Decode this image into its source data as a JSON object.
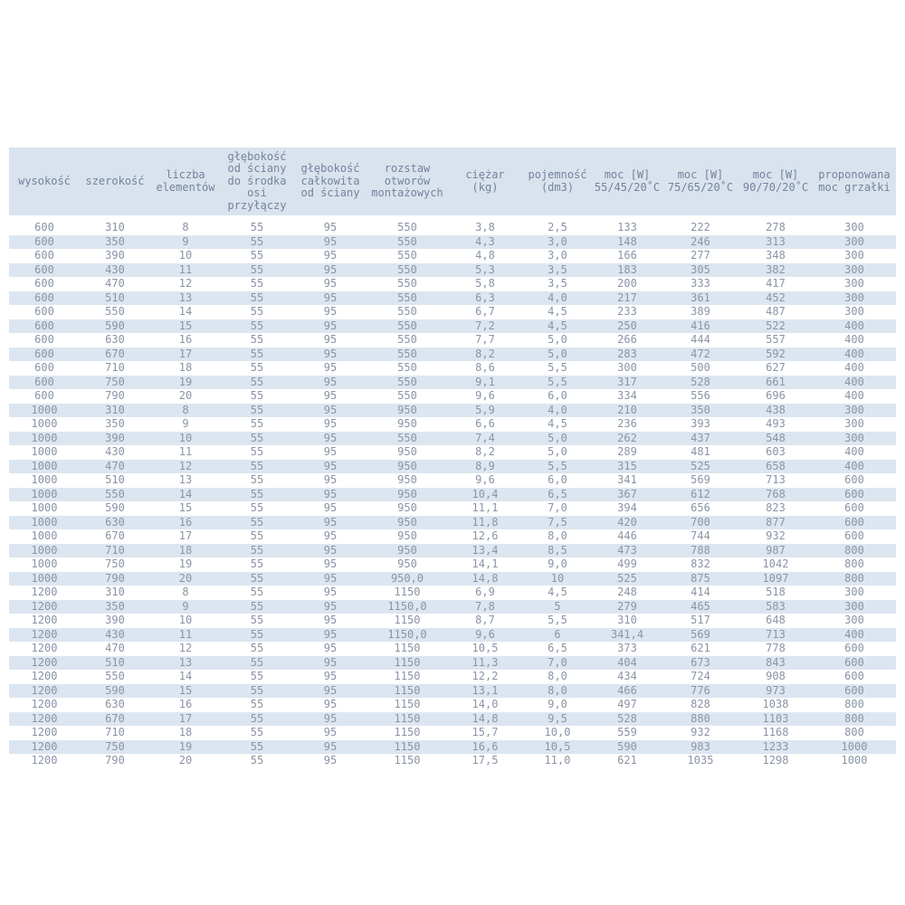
{
  "colors": {
    "header_bg": "#d9e3ee",
    "stripe_bg": "#dce6f0",
    "row_bg": "#ffffff",
    "header_text": "#75829c",
    "cell_text": "#8a94a6"
  },
  "table": {
    "columns": [
      "wysokość",
      "szerokość",
      "liczba\nelementów",
      "głębokość\nod ściany\ndo środka\nosi\nprzyłączy",
      "głębokość\ncałkowita\nod ściany",
      "rozstaw\notworów\nmontażowych",
      "ciężar\n(kg)",
      "pojemność\n(dm3)",
      "moc [W]\n55/45/20˚C",
      "moc [W]\n75/65/20˚C",
      "moc [W]\n90/70/20˚C",
      "proponowana\nmoc grzałki"
    ],
    "rows": [
      [
        "600",
        "310",
        "8",
        "55",
        "95",
        "550",
        "3,8",
        "2,5",
        "133",
        "222",
        "278",
        "300"
      ],
      [
        "600",
        "350",
        "9",
        "55",
        "95",
        "550",
        "4,3",
        "3,0",
        "148",
        "246",
        "313",
        "300"
      ],
      [
        "600",
        "390",
        "10",
        "55",
        "95",
        "550",
        "4,8",
        "3,0",
        "166",
        "277",
        "348",
        "300"
      ],
      [
        "600",
        "430",
        "11",
        "55",
        "95",
        "550",
        "5,3",
        "3,5",
        "183",
        "305",
        "382",
        "300"
      ],
      [
        "600",
        "470",
        "12",
        "55",
        "95",
        "550",
        "5,8",
        "3,5",
        "200",
        "333",
        "417",
        "300"
      ],
      [
        "600",
        "510",
        "13",
        "55",
        "95",
        "550",
        "6,3",
        "4,0",
        "217",
        "361",
        "452",
        "300"
      ],
      [
        "600",
        "550",
        "14",
        "55",
        "95",
        "550",
        "6,7",
        "4,5",
        "233",
        "389",
        "487",
        "300"
      ],
      [
        "600",
        "590",
        "15",
        "55",
        "95",
        "550",
        "7,2",
        "4,5",
        "250",
        "416",
        "522",
        "400"
      ],
      [
        "600",
        "630",
        "16",
        "55",
        "95",
        "550",
        "7,7",
        "5,0",
        "266",
        "444",
        "557",
        "400"
      ],
      [
        "600",
        "670",
        "17",
        "55",
        "95",
        "550",
        "8,2",
        "5,0",
        "283",
        "472",
        "592",
        "400"
      ],
      [
        "600",
        "710",
        "18",
        "55",
        "95",
        "550",
        "8,6",
        "5,5",
        "300",
        "500",
        "627",
        "400"
      ],
      [
        "600",
        "750",
        "19",
        "55",
        "95",
        "550",
        "9,1",
        "5,5",
        "317",
        "528",
        "661",
        "400"
      ],
      [
        "600",
        "790",
        "20",
        "55",
        "95",
        "550",
        "9,6",
        "6,0",
        "334",
        "556",
        "696",
        "400"
      ],
      [
        "1000",
        "310",
        "8",
        "55",
        "95",
        "950",
        "5,9",
        "4,0",
        "210",
        "350",
        "438",
        "300"
      ],
      [
        "1000",
        "350",
        "9",
        "55",
        "95",
        "950",
        "6,6",
        "4,5",
        "236",
        "393",
        "493",
        "300"
      ],
      [
        "1000",
        "390",
        "10",
        "55",
        "95",
        "550",
        "7,4",
        "5,0",
        "262",
        "437",
        "548",
        "300"
      ],
      [
        "1000",
        "430",
        "11",
        "55",
        "95",
        "950",
        "8,2",
        "5,0",
        "289",
        "481",
        "603",
        "400"
      ],
      [
        "1000",
        "470",
        "12",
        "55",
        "95",
        "950",
        "8,9",
        "5,5",
        "315",
        "525",
        "658",
        "400"
      ],
      [
        "1000",
        "510",
        "13",
        "55",
        "95",
        "950",
        "9,6",
        "6,0",
        "341",
        "569",
        "713",
        "600"
      ],
      [
        "1000",
        "550",
        "14",
        "55",
        "95",
        "950",
        "10,4",
        "6,5",
        "367",
        "612",
        "768",
        "600"
      ],
      [
        "1000",
        "590",
        "15",
        "55",
        "95",
        "950",
        "11,1",
        "7,0",
        "394",
        "656",
        "823",
        "600"
      ],
      [
        "1000",
        "630",
        "16",
        "55",
        "95",
        "950",
        "11,8",
        "7,5",
        "420",
        "700",
        "877",
        "600"
      ],
      [
        "1000",
        "670",
        "17",
        "55",
        "95",
        "950",
        "12,6",
        "8,0",
        "446",
        "744",
        "932",
        "600"
      ],
      [
        "1000",
        "710",
        "18",
        "55",
        "95",
        "950",
        "13,4",
        "8,5",
        "473",
        "788",
        "987",
        "800"
      ],
      [
        "1000",
        "750",
        "19",
        "55",
        "95",
        "950",
        "14,1",
        "9,0",
        "499",
        "832",
        "1042",
        "800"
      ],
      [
        "1000",
        "790",
        "20",
        "55",
        "95",
        "950,0",
        "14,8",
        "10",
        "525",
        "875",
        "1097",
        "800"
      ],
      [
        "1200",
        "310",
        "8",
        "55",
        "95",
        "1150",
        "6,9",
        "4,5",
        "248",
        "414",
        "518",
        "300"
      ],
      [
        "1200",
        "350",
        "9",
        "55",
        "95",
        "1150,0",
        "7,8",
        "5",
        "279",
        "465",
        "583",
        "300"
      ],
      [
        "1200",
        "390",
        "10",
        "55",
        "95",
        "1150",
        "8,7",
        "5,5",
        "310",
        "517",
        "648",
        "300"
      ],
      [
        "1200",
        "430",
        "11",
        "55",
        "95",
        "1150,0",
        "9,6",
        "6",
        "341,4",
        "569",
        "713",
        "400"
      ],
      [
        "1200",
        "470",
        "12",
        "55",
        "95",
        "1150",
        "10,5",
        "6,5",
        "373",
        "621",
        "778",
        "600"
      ],
      [
        "1200",
        "510",
        "13",
        "55",
        "95",
        "1150",
        "11,3",
        "7,0",
        "404",
        "673",
        "843",
        "600"
      ],
      [
        "1200",
        "550",
        "14",
        "55",
        "95",
        "1150",
        "12,2",
        "8,0",
        "434",
        "724",
        "908",
        "600"
      ],
      [
        "1200",
        "590",
        "15",
        "55",
        "95",
        "1150",
        "13,1",
        "8,0",
        "466",
        "776",
        "973",
        "600"
      ],
      [
        "1200",
        "630",
        "16",
        "55",
        "95",
        "1150",
        "14,0",
        "9,0",
        "497",
        "828",
        "1038",
        "800"
      ],
      [
        "1200",
        "670",
        "17",
        "55",
        "95",
        "1150",
        "14,8",
        "9,5",
        "528",
        "880",
        "1103",
        "800"
      ],
      [
        "1200",
        "710",
        "18",
        "55",
        "95",
        "1150",
        "15,7",
        "10,0",
        "559",
        "932",
        "1168",
        "800"
      ],
      [
        "1200",
        "750",
        "19",
        "55",
        "95",
        "1150",
        "16,6",
        "10,5",
        "590",
        "983",
        "1233",
        "1000"
      ],
      [
        "1200",
        "790",
        "20",
        "55",
        "95",
        "1150",
        "17,5",
        "11,0",
        "621",
        "1035",
        "1298",
        "1000"
      ]
    ]
  }
}
